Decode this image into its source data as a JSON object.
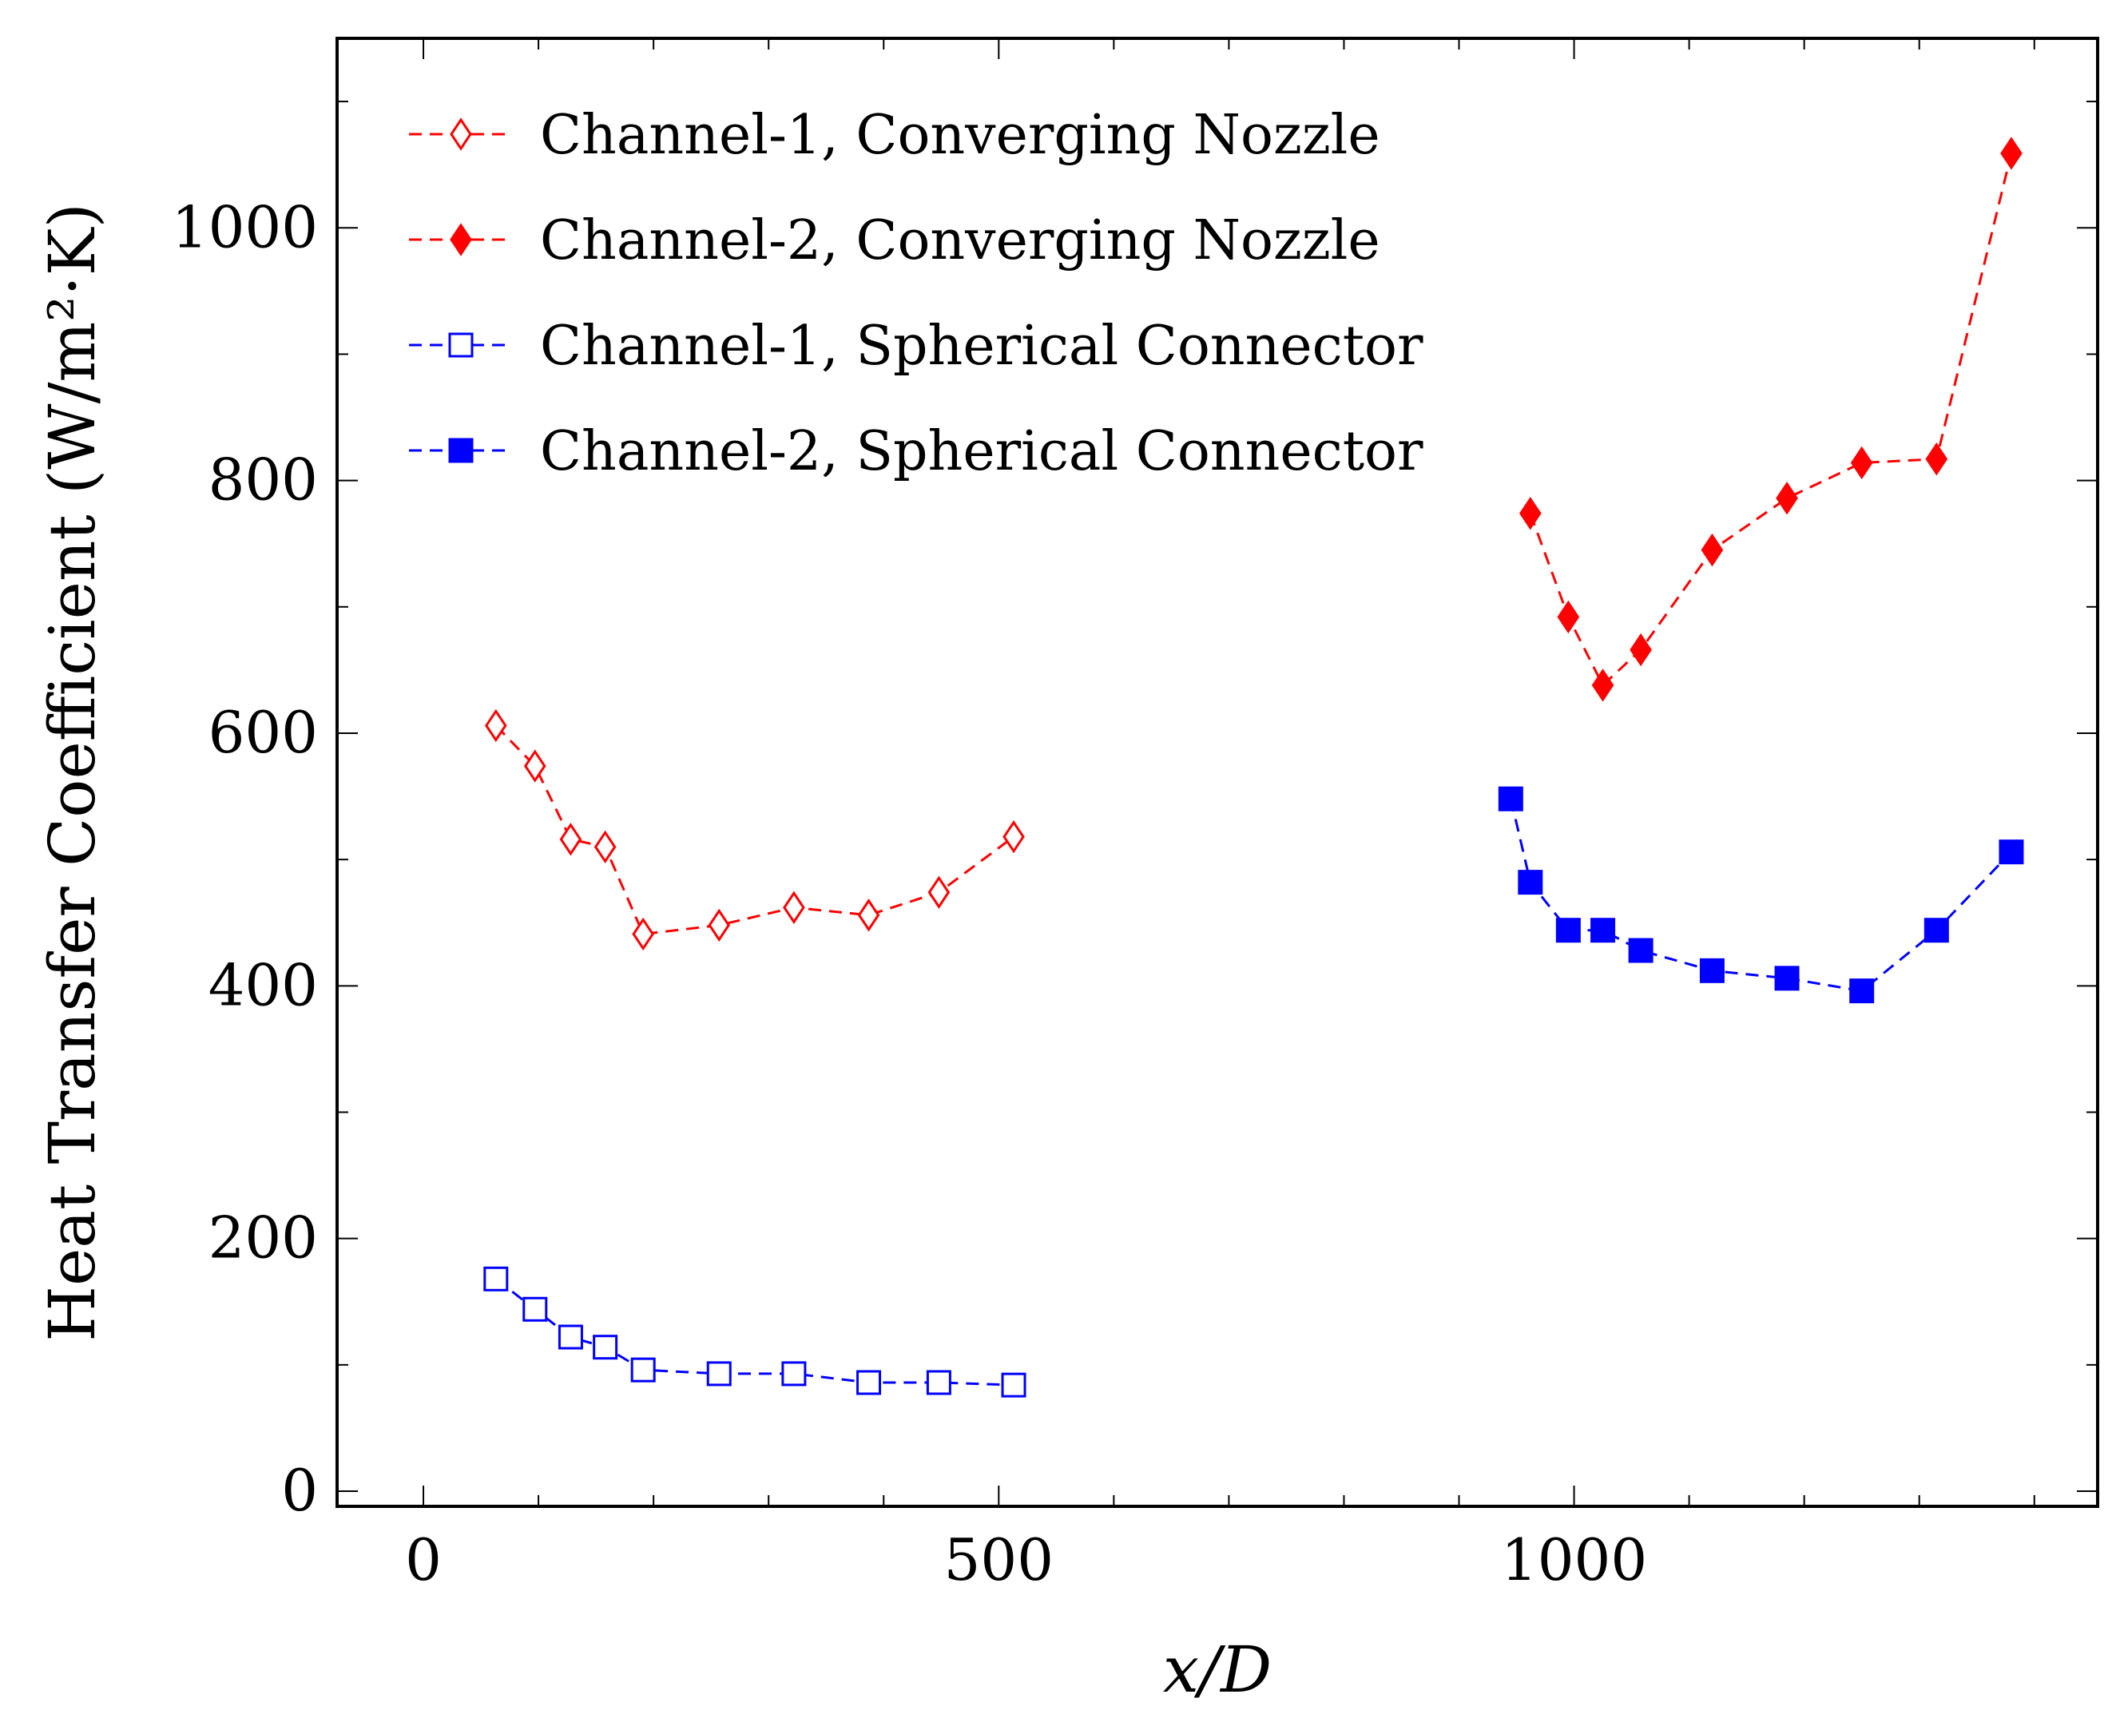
{
  "chart_data": {
    "type": "line",
    "title": "",
    "xlabel": "x/D",
    "ylabel": "Heat Transfer Coefficient (W/m²·K)",
    "xlim": [
      -75,
      1455
    ],
    "ylim": [
      -12,
      1150
    ],
    "xticks": [
      0,
      500,
      1000
    ],
    "yticks": [
      0,
      200,
      400,
      600,
      800,
      1000
    ],
    "xtick_labels": [
      "0",
      "500",
      "1000"
    ],
    "ytick_labels": [
      "0",
      "200",
      "400",
      "600",
      "800",
      "1000"
    ],
    "legend_position": "top-left",
    "series": [
      {
        "name": "Channel-1, Converging Nozzle",
        "color": "#ff0000",
        "marker": "diamond-open",
        "x": [
          63,
          97,
          128,
          158,
          191,
          257,
          322,
          387,
          448,
          513
        ],
        "y": [
          606,
          574,
          516,
          510,
          441,
          448,
          462,
          456,
          474,
          518
        ]
      },
      {
        "name": "Channel-2, Converging Nozzle",
        "color": "#ff0000",
        "marker": "diamond-filled",
        "x": [
          962,
          995,
          1025,
          1058,
          1120,
          1185,
          1250,
          1315,
          1380
        ],
        "y": [
          774,
          692,
          638,
          666,
          745,
          786,
          814,
          817,
          1059
        ]
      },
      {
        "name": "Channel-1, Spherical Connector",
        "color": "#0000ff",
        "marker": "square-open",
        "x": [
          63,
          97,
          128,
          158,
          191,
          257,
          322,
          387,
          448,
          513
        ],
        "y": [
          168,
          144,
          122,
          114,
          96,
          93,
          93,
          86,
          86,
          84
        ]
      },
      {
        "name": "Channel-2, Spherical Connector",
        "color": "#0000ff",
        "marker": "square-filled",
        "x": [
          945,
          962,
          995,
          1025,
          1058,
          1120,
          1185,
          1250,
          1315,
          1380
        ],
        "y": [
          548,
          482,
          444,
          444,
          428,
          412,
          406,
          396,
          444,
          506
        ]
      }
    ]
  }
}
